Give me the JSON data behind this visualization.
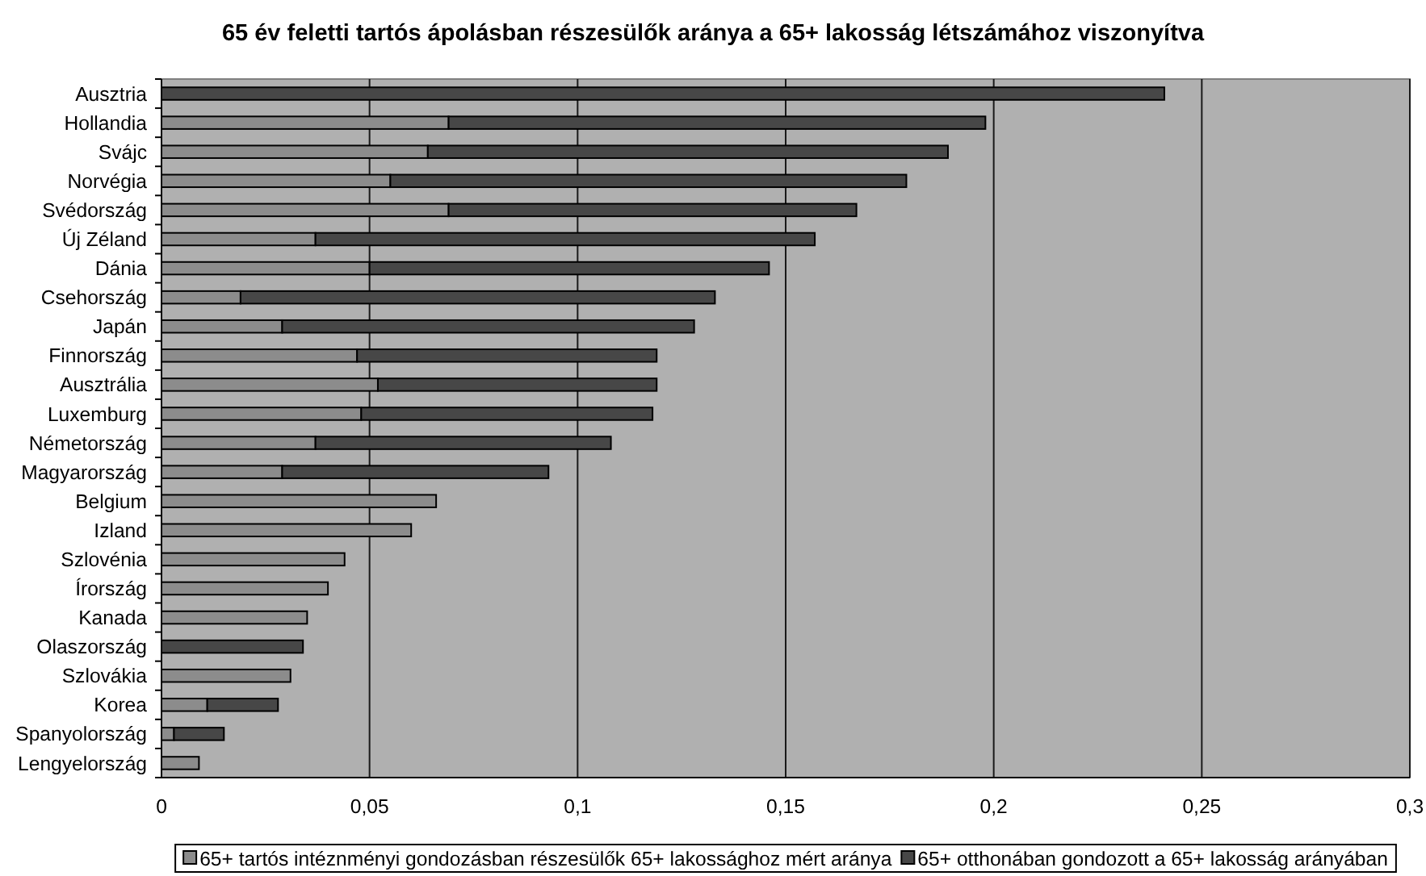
{
  "chart_data": {
    "type": "bar",
    "orientation": "horizontal",
    "stacked": true,
    "title": "65 év feletti tartós ápolásban részesülők aránya a 65+ lakosság létszámához viszonyítva",
    "categories": [
      "Ausztria",
      "Hollandia",
      "Svájc",
      "Norvégia",
      "Svédország",
      "Új Zéland",
      "Dánia",
      "Csehország",
      "Japán",
      "Finnország",
      "Ausztrália",
      "Luxemburg",
      "Németország",
      "Magyarország",
      "Belgium",
      "Izland",
      "Szlovénia",
      "Írország",
      "Kanada",
      "Olaszország",
      "Szlovákia",
      "Korea",
      "Spanyolország",
      "Lengyelország"
    ],
    "series": [
      {
        "name": "65+ tartós intéznményi gondozásban részesülők 65+ lakossághoz mért aránya",
        "color": "#8c8c8c",
        "values": [
          null,
          0.069,
          0.064,
          0.055,
          0.069,
          0.037,
          0.05,
          0.019,
          0.029,
          0.047,
          0.052,
          0.048,
          0.037,
          0.029,
          0.066,
          0.06,
          0.044,
          0.04,
          0.035,
          null,
          0.031,
          0.011,
          0.003,
          0.009
        ]
      },
      {
        "name": "65+ otthonában gondozott a 65+ lakosság arányában",
        "color": "#474747",
        "values": [
          0.241,
          0.129,
          0.125,
          0.124,
          0.098,
          0.12,
          0.096,
          0.114,
          0.099,
          0.072,
          0.067,
          0.07,
          0.071,
          0.064,
          null,
          null,
          null,
          null,
          null,
          0.034,
          null,
          0.017,
          0.012,
          null
        ]
      }
    ],
    "xlim": [
      0,
      0.3
    ],
    "xticks": [
      0,
      {
        "value": 0.05,
        "label": "0,05"
      },
      {
        "value": 0.1,
        "label": "0,1"
      },
      {
        "value": 0.15,
        "label": "0,15"
      },
      {
        "value": 0.2,
        "label": "0,2"
      },
      {
        "value": 0.25,
        "label": "0,25"
      },
      {
        "value": 0.3,
        "label": "0,3"
      }
    ],
    "grid": "x",
    "legend": "bottom"
  }
}
